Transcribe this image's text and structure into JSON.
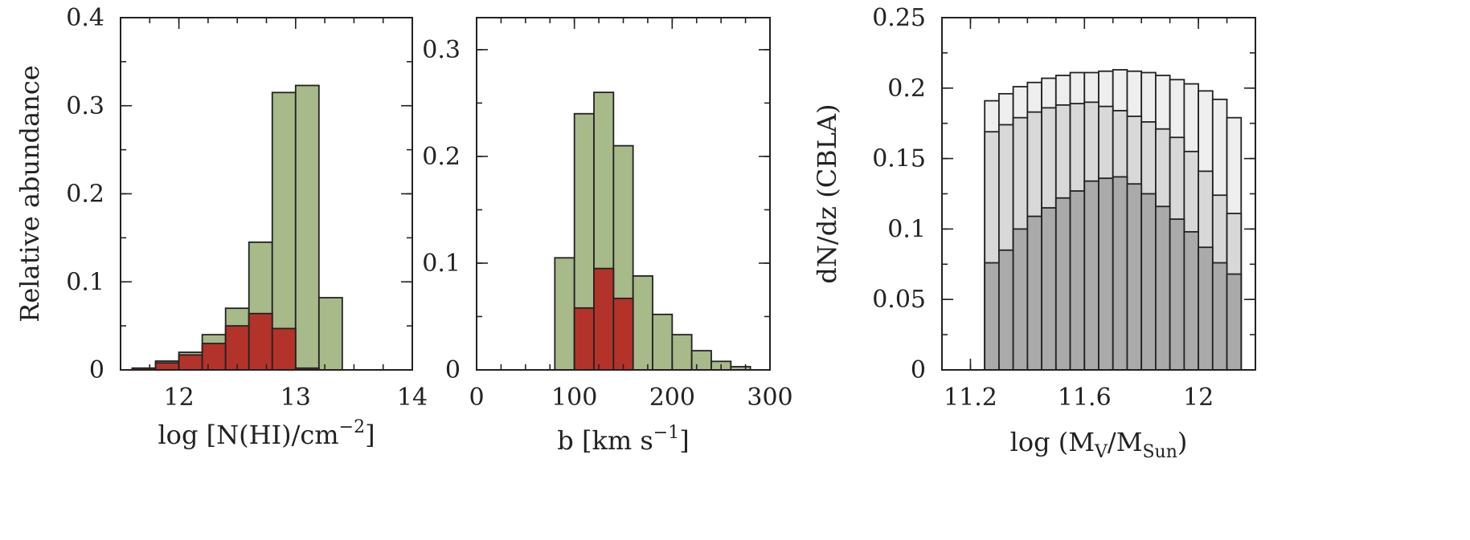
{
  "chart_data": [
    {
      "type": "bar",
      "xlabel": "log [N(HI)/cm",
      "xlabel_sup": "−2",
      "xlabel_tail": "]",
      "ylabel": "Relative abundance",
      "xlim": [
        11.5,
        14
      ],
      "ylim": [
        0,
        0.4
      ],
      "xticks": [
        12,
        13,
        14
      ],
      "xtick_labels": [
        "12",
        "13",
        "14"
      ],
      "yticks": [
        0,
        0.1,
        0.2,
        0.3,
        0.4
      ],
      "ytick_labels": [
        "0",
        "0.1",
        "0.2",
        "0.3",
        "0.4"
      ],
      "bin_edges": [
        11.6,
        11.8,
        12.0,
        12.2,
        12.4,
        12.6,
        12.8,
        13.0,
        13.2,
        13.4
      ],
      "series": [
        {
          "color": "#a8b98a",
          "values": [
            0.002,
            0.01,
            0.02,
            0.04,
            0.07,
            0.145,
            0.315,
            0.323,
            0.082
          ]
        },
        {
          "color": "#b3332b",
          "values": [
            0.002,
            0.008,
            0.017,
            0.03,
            0.05,
            0.064,
            0.047,
            0.002,
            0
          ]
        }
      ]
    },
    {
      "type": "bar",
      "xlabel": "b [km s",
      "xlabel_sup": "−1",
      "xlabel_tail": "]",
      "ylabel": "",
      "xlim": [
        0,
        300
      ],
      "ylim": [
        0,
        0.33
      ],
      "xticks": [
        0,
        100,
        200,
        300
      ],
      "xtick_labels": [
        "0",
        "100",
        "200",
        "300"
      ],
      "yticks": [
        0,
        0.1,
        0.2,
        0.3
      ],
      "ytick_labels": [
        "0",
        "0.1",
        "0.2",
        "0.3"
      ],
      "bin_edges": [
        80,
        100,
        120,
        140,
        160,
        180,
        200,
        220,
        240,
        260,
        280
      ],
      "series": [
        {
          "color": "#a8b98a",
          "values": [
            0.105,
            0.24,
            0.26,
            0.21,
            0.088,
            0.052,
            0.033,
            0.018,
            0.008,
            0.003
          ]
        },
        {
          "color": "#b3332b",
          "values": [
            0,
            0.058,
            0.095,
            0.067,
            0,
            0,
            0,
            0,
            0,
            0
          ]
        }
      ]
    },
    {
      "type": "bar",
      "xlabel": "log (M",
      "xlabel_sub1": "V",
      "xlabel_mid": "/M",
      "xlabel_sub2": "Sun",
      "xlabel_tail": ")",
      "ylabel": "dN/dz  (CBLA)",
      "xlim": [
        11.1,
        12.2
      ],
      "ylim": [
        0,
        0.25
      ],
      "xticks": [
        11.2,
        11.6,
        12
      ],
      "xtick_labels": [
        "11.2",
        "11.6",
        "12"
      ],
      "yticks": [
        0,
        0.05,
        0.1,
        0.15,
        0.2,
        0.25
      ],
      "ytick_labels": [
        "0",
        "0.05",
        "0.1",
        "0.15",
        "0.2",
        "0.25"
      ],
      "bin_edges": [
        11.25,
        11.3,
        11.35,
        11.4,
        11.45,
        11.5,
        11.55,
        11.6,
        11.65,
        11.7,
        11.75,
        11.8,
        11.85,
        11.9,
        11.95,
        12.0,
        12.05,
        12.1,
        12.15
      ],
      "series": [
        {
          "color": "#eeeeee",
          "values": [
            0.191,
            0.196,
            0.201,
            0.204,
            0.207,
            0.209,
            0.211,
            0.211,
            0.212,
            0.213,
            0.212,
            0.211,
            0.209,
            0.206,
            0.203,
            0.198,
            0.192,
            0.179
          ]
        },
        {
          "color": "#d8d8d8",
          "values": [
            0.169,
            0.174,
            0.179,
            0.183,
            0.186,
            0.188,
            0.189,
            0.19,
            0.187,
            0.184,
            0.18,
            0.176,
            0.171,
            0.165,
            0.155,
            0.141,
            0.124,
            0.111
          ]
        },
        {
          "color": "#aaaaaa",
          "values": [
            0.076,
            0.085,
            0.1,
            0.109,
            0.115,
            0.122,
            0.127,
            0.134,
            0.136,
            0.137,
            0.132,
            0.125,
            0.116,
            0.107,
            0.098,
            0.087,
            0.076,
            0.068
          ]
        }
      ]
    }
  ]
}
